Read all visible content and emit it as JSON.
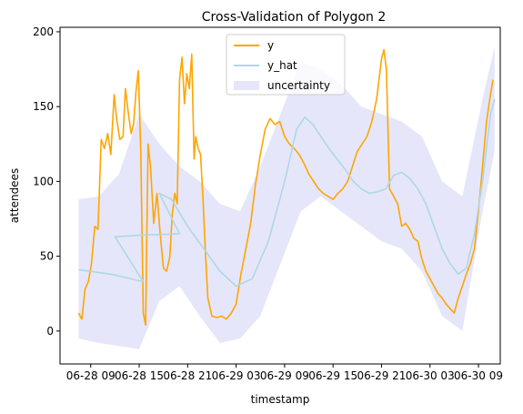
{
  "chart_data": {
    "type": "line",
    "title": "Cross-Validation of Polygon 2",
    "xlabel": "timestamp",
    "ylabel": "attendees",
    "x_ticks": [
      "06-28 09",
      "06-28 15",
      "06-28 21",
      "06-29 03",
      "06-29 09",
      "06-29 15",
      "06-29 21",
      "06-30 03",
      "06-30 09"
    ],
    "x_tick_hours": [
      9,
      15,
      21,
      27,
      33,
      39,
      45,
      51,
      57
    ],
    "xlim": [
      5.2,
      59.7
    ],
    "y_ticks": [
      0,
      50,
      100,
      150,
      200
    ],
    "ylim": [
      -22,
      203
    ],
    "grid": false,
    "legend_placement": "upper-center",
    "colors": {
      "y": "#ffa500",
      "y_hat": "#add8e6",
      "uncertainty": "#e6e6fa"
    },
    "series": [
      {
        "name": "y",
        "x": [
          7.5,
          7.9,
          8.3,
          8.7,
          9.1,
          9.5,
          9.9,
          10.3,
          10.7,
          11.1,
          11.5,
          11.9,
          12.2,
          12.6,
          13.0,
          13.3,
          13.6,
          14.0,
          14.3,
          14.6,
          14.9,
          15.2,
          15.5,
          15.8,
          16.1,
          16.4,
          16.8,
          17.2,
          17.6,
          18.0,
          18.4,
          18.8,
          19.1,
          19.4,
          19.7,
          20.0,
          20.3,
          20.6,
          20.9,
          21.2,
          21.5,
          21.8,
          22.0,
          22.3,
          22.6,
          22.9,
          23.2,
          23.5,
          24.0,
          24.6,
          25.2,
          25.8,
          26.4,
          27.0,
          27.6,
          28.2,
          28.8,
          29.4,
          30.0,
          30.6,
          31.2,
          31.8,
          32.4,
          33.0,
          33.6,
          34.2,
          34.8,
          35.4,
          36.0,
          36.6,
          37.2,
          37.8,
          38.4,
          39.0,
          39.6,
          40.2,
          40.8,
          41.4,
          42.0,
          42.6,
          43.2,
          43.8,
          44.4,
          45.0,
          45.3,
          45.6,
          46.0,
          46.5,
          47.0,
          47.5,
          48.0,
          48.5,
          49.0,
          49.5,
          50.0,
          50.5,
          51.0,
          51.5,
          52.0,
          52.5,
          53.0,
          53.5,
          54.0,
          54.5,
          55.0,
          55.5,
          56.0,
          56.5,
          57.0,
          57.5,
          58.0,
          58.4,
          58.8
        ],
        "values": [
          12,
          8,
          28,
          33,
          45,
          70,
          68,
          128,
          122,
          132,
          118,
          158,
          142,
          128,
          130,
          162,
          148,
          132,
          138,
          160,
          174,
          120,
          12,
          4,
          125,
          110,
          72,
          92,
          65,
          42,
          40,
          50,
          78,
          92,
          85,
          168,
          183,
          152,
          172,
          162,
          185,
          115,
          130,
          122,
          118,
          88,
          52,
          22,
          10,
          9,
          10,
          8,
          12,
          18,
          38,
          55,
          72,
          98,
          118,
          135,
          142,
          138,
          140,
          130,
          125,
          122,
          118,
          112,
          105,
          100,
          95,
          92,
          90,
          88,
          92,
          95,
          100,
          110,
          120,
          125,
          130,
          140,
          155,
          182,
          188,
          175,
          95,
          90,
          85,
          70,
          72,
          68,
          62,
          60,
          48,
          40,
          35,
          30,
          25,
          22,
          18,
          15,
          12,
          22,
          30,
          38,
          45,
          55,
          80,
          110,
          140,
          155,
          168
        ]
      },
      {
        "name": "y_hat",
        "x": [
          7.5,
          11.5,
          15.5,
          12.0,
          15.0,
          20.0,
          17.5,
          19.0,
          21.0,
          23.0,
          25.0,
          27.0,
          29.0,
          31.0,
          33.0,
          34.5,
          35.5,
          36.5,
          37.5,
          38.5,
          39.5,
          40.5,
          41.5,
          42.5,
          43.5,
          44.5,
          45.5,
          46.5,
          47.5,
          48.5,
          49.5,
          50.5,
          51.5,
          52.5,
          53.5,
          54.5,
          55.5,
          56.5,
          57.5,
          58.5,
          59.0
        ],
        "values": [
          41,
          38,
          33,
          63,
          64,
          65,
          92,
          88,
          70,
          55,
          40,
          30,
          35,
          60,
          100,
          135,
          143,
          138,
          130,
          122,
          115,
          108,
          100,
          95,
          92,
          93,
          95,
          104,
          106,
          102,
          95,
          85,
          70,
          55,
          45,
          38,
          42,
          65,
          100,
          145,
          155
        ]
      }
    ],
    "uncertainty_band": {
      "name": "uncertainty",
      "x": [
        7.5,
        10.0,
        12.5,
        15.0,
        17.5,
        20.0,
        22.5,
        25.0,
        27.5,
        30.0,
        32.5,
        35.0,
        37.5,
        40.0,
        42.5,
        45.0,
        47.5,
        50.0,
        52.5,
        55.0,
        57.5,
        59.0
      ],
      "lower": [
        -5,
        -8,
        -10,
        -12,
        20,
        30,
        10,
        -8,
        -5,
        10,
        45,
        80,
        90,
        80,
        70,
        60,
        55,
        40,
        10,
        0,
        80,
        120
      ],
      "upper": [
        88,
        90,
        105,
        145,
        125,
        110,
        100,
        85,
        80,
        110,
        145,
        180,
        175,
        165,
        150,
        145,
        140,
        130,
        100,
        90,
        155,
        190
      ]
    }
  }
}
